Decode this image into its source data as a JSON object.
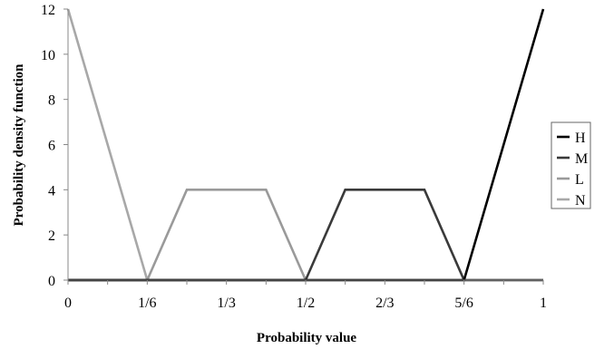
{
  "chart_data": {
    "type": "line",
    "title": "",
    "xlabel": "Probability value",
    "ylabel": "Probability density function",
    "xlim": [
      0,
      1
    ],
    "ylim": [
      0,
      12
    ],
    "x_ticks": [
      0,
      0.0833,
      0.1667,
      0.25,
      0.3333,
      0.4167,
      0.5,
      0.5833,
      0.6667,
      0.75,
      0.8333,
      0.9167,
      1
    ],
    "x_tick_labels": [
      {
        "value": 0,
        "label": "0"
      },
      {
        "value": 0.1667,
        "label": "1/6"
      },
      {
        "value": 0.3333,
        "label": "1/3"
      },
      {
        "value": 0.5,
        "label": "1/2"
      },
      {
        "value": 0.6667,
        "label": "2/3"
      },
      {
        "value": 0.8333,
        "label": "5/6"
      },
      {
        "value": 1,
        "label": "1"
      }
    ],
    "y_ticks": [
      0,
      2,
      4,
      6,
      8,
      10,
      12
    ],
    "grid": false,
    "legend_position": "right",
    "series": [
      {
        "name": "H",
        "color": "#000000",
        "points": [
          [
            0,
            0
          ],
          [
            0.8333,
            0
          ],
          [
            1,
            12
          ]
        ]
      },
      {
        "name": "M",
        "color": "#3a3a3a",
        "points": [
          [
            0,
            0
          ],
          [
            0.5,
            0
          ],
          [
            0.5833,
            4
          ],
          [
            0.75,
            4
          ],
          [
            0.8333,
            0
          ],
          [
            1,
            0
          ]
        ]
      },
      {
        "name": "L",
        "color": "#9a9a9a",
        "points": [
          [
            0,
            0
          ],
          [
            0.1667,
            0
          ],
          [
            0.25,
            4
          ],
          [
            0.4167,
            4
          ],
          [
            0.5,
            0
          ],
          [
            1,
            0
          ]
        ]
      },
      {
        "name": "N",
        "color": "#a8a8a8",
        "points": [
          [
            0,
            12
          ],
          [
            0.1667,
            0
          ],
          [
            1,
            0
          ]
        ]
      }
    ]
  }
}
